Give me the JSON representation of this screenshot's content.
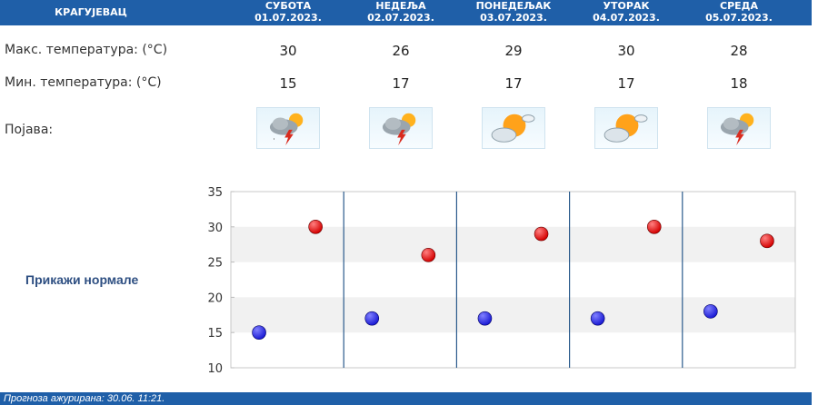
{
  "header": {
    "city": "КРАГУЈЕВАЦ",
    "days": [
      {
        "name": "СУБОТА",
        "date": "01.07.2023."
      },
      {
        "name": "НЕДЕЉА",
        "date": "02.07.2023."
      },
      {
        "name": "ПОНЕДЕЉАК",
        "date": "03.07.2023."
      },
      {
        "name": "УТОРАК",
        "date": "04.07.2023."
      },
      {
        "name": "СРЕДА",
        "date": "05.07.2023."
      }
    ]
  },
  "rows": {
    "max_label": "Макс. температура: (°C)",
    "min_label": "Мин. температура: (°C)",
    "phenomenon_label": "Појава:",
    "max_values": [
      "30",
      "26",
      "29",
      "30",
      "28"
    ],
    "min_values": [
      "15",
      "17",
      "17",
      "17",
      "18"
    ],
    "icons": [
      "storm-cloud-sun-icon",
      "storm-cloud-sun-icon",
      "partly-cloudy-sun-icon",
      "partly-cloudy-sun-icon",
      "storm-cloud-sun-icon"
    ]
  },
  "normals_link": "Прикажи нормале",
  "footer": {
    "updated": "Прогноза ажурирана:  30.06.  11:21."
  },
  "colors": {
    "header": "#1f5fa8",
    "max_dot": "#d40000",
    "min_dot": "#1a1ad4",
    "divider": "#2a5a8c"
  },
  "chart_data": {
    "type": "scatter",
    "ylim": [
      10,
      35
    ],
    "yticks": [
      "10",
      "15",
      "20",
      "25",
      "30",
      "35"
    ],
    "series": [
      {
        "values": [
          30,
          26,
          29,
          30,
          28
        ]
      },
      {
        "values": [
          15,
          17,
          17,
          17,
          18
        ]
      }
    ]
  }
}
